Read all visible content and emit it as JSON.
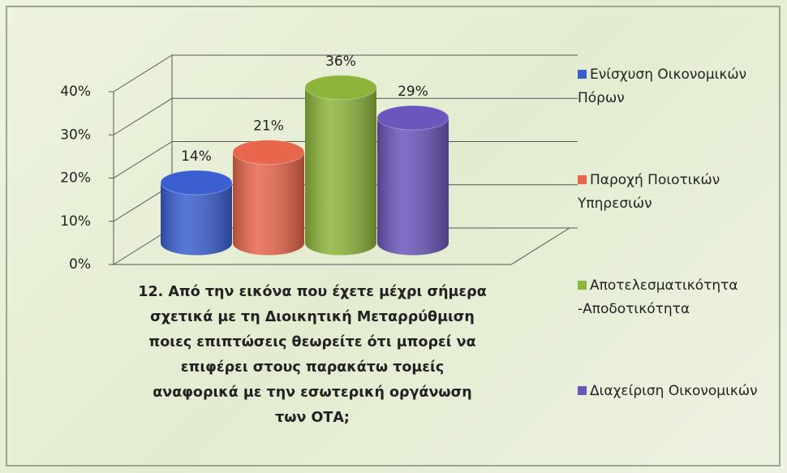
{
  "chart_data": {
    "type": "bar3d",
    "title": "12. Από την εικόνα που έχετε μέχρι σήμερα σχετικά με τη Διοικητική Μεταρρύθμιση ποιες επιπτώσεις θεωρείτε ότι μπορεί να επιφέρει στους παρακάτω τομείς αναφορικά με την εσωτερική οργάνωση των ΟΤΑ;",
    "categories": [
      "Ενίσχυση Οικονομικών Πόρων",
      "Παροχή Ποιοτικών Υπηρεσιών",
      "Αποτελεσματικότητα -Αποδοτικότητα",
      "Διαχείριση Οικονομικών"
    ],
    "values": [
      14,
      21,
      36,
      29
    ],
    "value_labels": [
      "14%",
      "21%",
      "36%",
      "29%"
    ],
    "colors": [
      "#3b5fd0",
      "#e8664c",
      "#8db53b",
      "#6b56bb"
    ],
    "ylim": [
      0,
      40
    ],
    "yticks": [
      {
        "value": 0,
        "label": "0%"
      },
      {
        "value": 10,
        "label": "10%"
      },
      {
        "value": 20,
        "label": "20%"
      },
      {
        "value": 30,
        "label": "30%"
      },
      {
        "value": 40,
        "label": "40%"
      }
    ],
    "grid": true,
    "legend": "right"
  }
}
